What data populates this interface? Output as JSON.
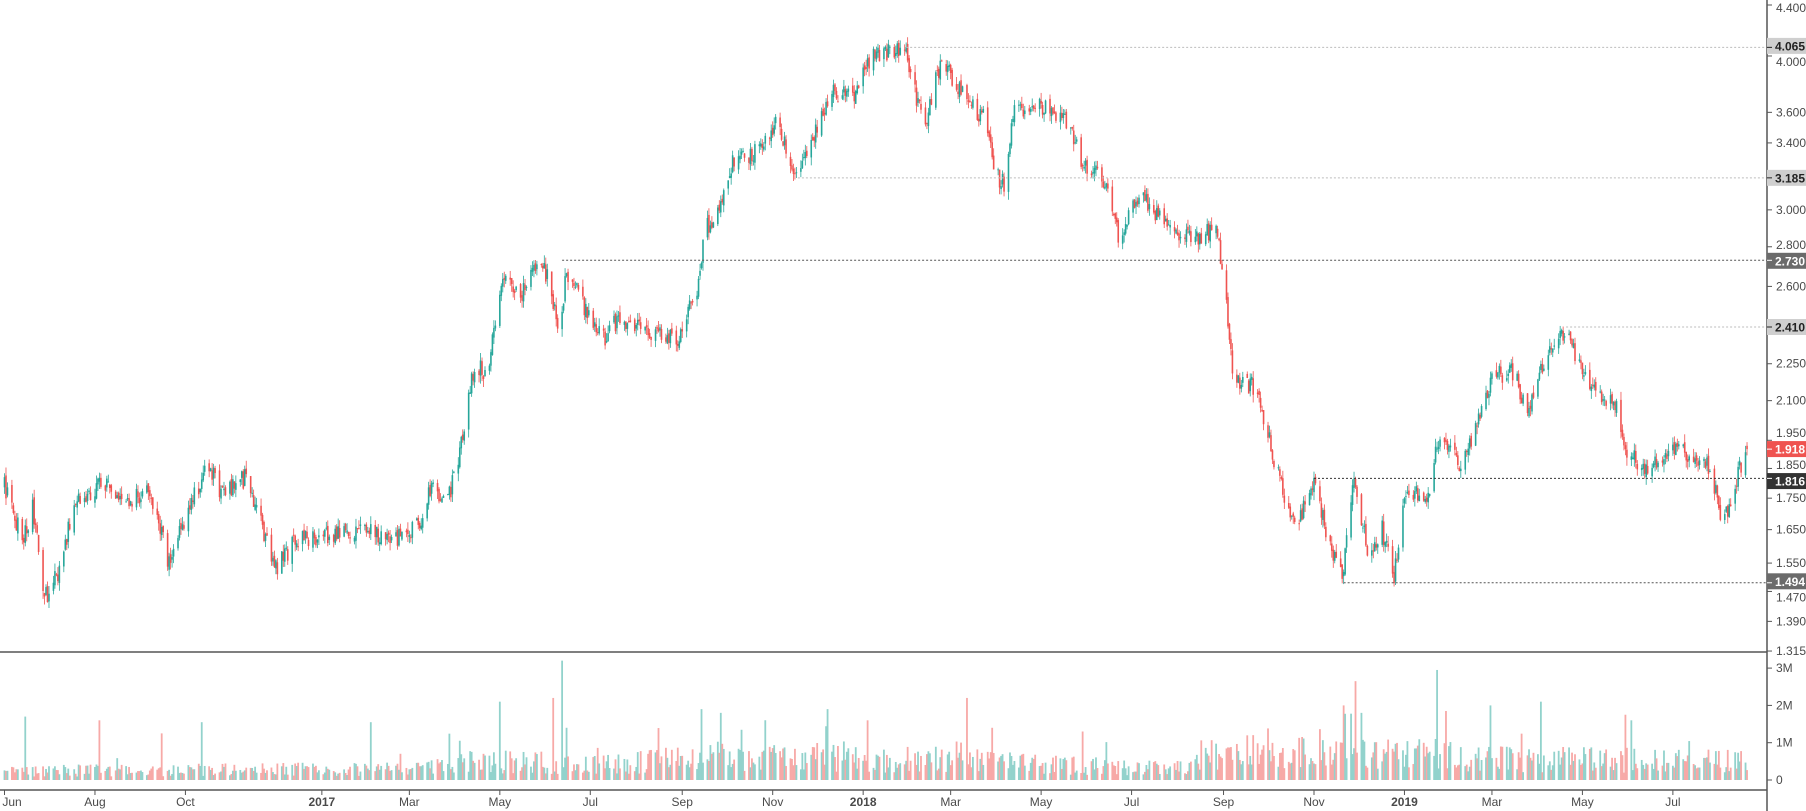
{
  "chart_data": {
    "type": "candlestick",
    "price_scale": "log",
    "ylim": [
      1.315,
      4.4
    ],
    "x_start": "2016-06-01",
    "colors": {
      "up": "#26a69a",
      "down": "#ef5350",
      "vol_up": "#92d2cc",
      "vol_down": "#f7a9a7"
    },
    "price_ticks": [
      "4.400",
      "4.000",
      "3.600",
      "3.400",
      "3.000",
      "2.800",
      "2.600",
      "2.250",
      "2.100",
      "1.950",
      "1.850",
      "1.750",
      "1.650",
      "1.550",
      "1.470",
      "1.390",
      "1.315"
    ],
    "volume_ticks": [
      {
        "label": "3M",
        "value": 3
      },
      {
        "label": "2M",
        "value": 2
      },
      {
        "label": "1M",
        "value": 1
      },
      {
        "label": "0",
        "value": 0
      }
    ],
    "time_labels": [
      {
        "label": "Jun",
        "date": "2016-06-01",
        "bold": false
      },
      {
        "label": "Aug",
        "date": "2016-08-01",
        "bold": false
      },
      {
        "label": "Oct",
        "date": "2016-10-01",
        "bold": false
      },
      {
        "label": "2017",
        "date": "2017-01-01",
        "bold": true
      },
      {
        "label": "Mar",
        "date": "2017-03-01",
        "bold": false
      },
      {
        "label": "May",
        "date": "2017-05-01",
        "bold": false
      },
      {
        "label": "Jul",
        "date": "2017-07-01",
        "bold": false
      },
      {
        "label": "Sep",
        "date": "2017-09-01",
        "bold": false
      },
      {
        "label": "Nov",
        "date": "2017-11-01",
        "bold": false
      },
      {
        "label": "2018",
        "date": "2018-01-01",
        "bold": true
      },
      {
        "label": "Mar",
        "date": "2018-03-01",
        "bold": false
      },
      {
        "label": "May",
        "date": "2018-05-01",
        "bold": false
      },
      {
        "label": "Jul",
        "date": "2018-07-01",
        "bold": false
      },
      {
        "label": "Sep",
        "date": "2018-09-01",
        "bold": false
      },
      {
        "label": "Nov",
        "date": "2018-11-01",
        "bold": false
      },
      {
        "label": "2019",
        "date": "2019-01-01",
        "bold": true
      },
      {
        "label": "Mar",
        "date": "2019-03-01",
        "bold": false
      },
      {
        "label": "May",
        "date": "2019-05-01",
        "bold": false
      },
      {
        "label": "Jul",
        "date": "2019-07-01",
        "bold": false
      }
    ],
    "levels": [
      {
        "label": "4.065",
        "price": 4.065,
        "start_day": 608,
        "style": "light"
      },
      {
        "label": "3.185",
        "price": 3.185,
        "start_day": 535,
        "style": "light"
      },
      {
        "label": "2.730",
        "price": 2.73,
        "start_day": 376,
        "style": "dark"
      },
      {
        "label": "2.410",
        "price": 2.41,
        "start_day": 1053,
        "style": "light"
      },
      {
        "label": "1.816",
        "price": 1.816,
        "start_day": 883,
        "style": "black"
      },
      {
        "label": "1.494",
        "price": 1.494,
        "start_day": 903,
        "style": "dark"
      }
    ],
    "last_price": {
      "label": "1.918",
      "price": 1.918
    },
    "close_anchors_day_price": [
      [
        0,
        1.79
      ],
      [
        12,
        1.62
      ],
      [
        19,
        1.72
      ],
      [
        27,
        1.45
      ],
      [
        39,
        1.55
      ],
      [
        46,
        1.72
      ],
      [
        66,
        1.8
      ],
      [
        81,
        1.72
      ],
      [
        97,
        1.78
      ],
      [
        111,
        1.55
      ],
      [
        124,
        1.72
      ],
      [
        138,
        1.86
      ],
      [
        147,
        1.76
      ],
      [
        163,
        1.82
      ],
      [
        174,
        1.65
      ],
      [
        182,
        1.53
      ],
      [
        197,
        1.62
      ],
      [
        221,
        1.63
      ],
      [
        240,
        1.65
      ],
      [
        263,
        1.62
      ],
      [
        279,
        1.66
      ],
      [
        289,
        1.8
      ],
      [
        298,
        1.72
      ],
      [
        306,
        1.88
      ],
      [
        317,
        2.25
      ],
      [
        325,
        2.2
      ],
      [
        337,
        2.65
      ],
      [
        348,
        2.55
      ],
      [
        360,
        2.73
      ],
      [
        368,
        2.62
      ],
      [
        374,
        2.35
      ],
      [
        379,
        2.68
      ],
      [
        391,
        2.5
      ],
      [
        403,
        2.35
      ],
      [
        414,
        2.45
      ],
      [
        430,
        2.4
      ],
      [
        453,
        2.35
      ],
      [
        468,
        2.6
      ],
      [
        472,
        2.9
      ],
      [
        480,
        2.95
      ],
      [
        492,
        3.3
      ],
      [
        511,
        3.35
      ],
      [
        521,
        3.55
      ],
      [
        534,
        3.2
      ],
      [
        546,
        3.45
      ],
      [
        557,
        3.75
      ],
      [
        573,
        3.7
      ],
      [
        585,
        4.0
      ],
      [
        608,
        4.05
      ],
      [
        615,
        3.7
      ],
      [
        622,
        3.55
      ],
      [
        631,
        3.95
      ],
      [
        639,
        3.85
      ],
      [
        650,
        3.65
      ],
      [
        662,
        3.55
      ],
      [
        668,
        3.2
      ],
      [
        674,
        3.15
      ],
      [
        681,
        3.6
      ],
      [
        701,
        3.65
      ],
      [
        716,
        3.55
      ],
      [
        728,
        3.25
      ],
      [
        739,
        3.25
      ],
      [
        751,
        2.85
      ],
      [
        766,
        3.08
      ],
      [
        786,
        2.9
      ],
      [
        805,
        2.85
      ],
      [
        817,
        2.9
      ],
      [
        823,
        2.6
      ],
      [
        828,
        2.2
      ],
      [
        844,
        2.15
      ],
      [
        855,
        1.9
      ],
      [
        863,
        1.75
      ],
      [
        871,
        1.65
      ],
      [
        883,
        1.8
      ],
      [
        894,
        1.6
      ],
      [
        902,
        1.5
      ],
      [
        910,
        1.8
      ],
      [
        921,
        1.55
      ],
      [
        929,
        1.65
      ],
      [
        937,
        1.5
      ],
      [
        944,
        1.78
      ],
      [
        960,
        1.75
      ],
      [
        968,
        1.98
      ],
      [
        983,
        1.85
      ],
      [
        1003,
        2.2
      ],
      [
        1018,
        2.22
      ],
      [
        1026,
        2.05
      ],
      [
        1041,
        2.3
      ],
      [
        1053,
        2.38
      ],
      [
        1064,
        2.2
      ],
      [
        1076,
        2.1
      ],
      [
        1088,
        2.1
      ],
      [
        1092,
        1.9
      ],
      [
        1111,
        1.85
      ],
      [
        1126,
        1.92
      ],
      [
        1150,
        1.85
      ],
      [
        1158,
        1.68
      ],
      [
        1166,
        1.75
      ],
      [
        1170,
        1.85
      ],
      [
        1175,
        1.918
      ]
    ],
    "volume_base_day_millions": [
      [
        0,
        0.3
      ],
      [
        280,
        0.35
      ],
      [
        300,
        0.6
      ],
      [
        420,
        0.5
      ],
      [
        460,
        0.75
      ],
      [
        600,
        0.65
      ],
      [
        700,
        0.5
      ],
      [
        790,
        0.35
      ],
      [
        820,
        0.9
      ],
      [
        970,
        0.8
      ],
      [
        1000,
        0.65
      ],
      [
        1175,
        0.6
      ]
    ],
    "volume_spikes_day_millions": [
      [
        16,
        1.7,
        "up"
      ],
      [
        66,
        1.6,
        "down"
      ],
      [
        108,
        1.25,
        "down"
      ],
      [
        135,
        1.55,
        "up"
      ],
      [
        249,
        1.55,
        "up"
      ],
      [
        335,
        2.1,
        "up"
      ],
      [
        372,
        2.2,
        "down"
      ],
      [
        378,
        3.2,
        "up"
      ],
      [
        379,
        1.4,
        "up"
      ],
      [
        472,
        1.9,
        "up"
      ],
      [
        485,
        1.8,
        "up"
      ],
      [
        557,
        1.9,
        "up"
      ],
      [
        584,
        1.6,
        "down"
      ],
      [
        651,
        2.2,
        "down"
      ],
      [
        668,
        1.4,
        "down"
      ],
      [
        729,
        1.3,
        "down"
      ],
      [
        905,
        2.0,
        "down"
      ],
      [
        913,
        2.65,
        "down"
      ],
      [
        916,
        1.8,
        "up"
      ],
      [
        968,
        2.95,
        "up"
      ],
      [
        970,
        2.45,
        "up"
      ],
      [
        974,
        1.85,
        "down"
      ],
      [
        1004,
        2.0,
        "up"
      ],
      [
        1038,
        2.1,
        "up"
      ],
      [
        1095,
        1.75,
        "down"
      ],
      [
        1097,
        1.6,
        "up"
      ]
    ]
  }
}
